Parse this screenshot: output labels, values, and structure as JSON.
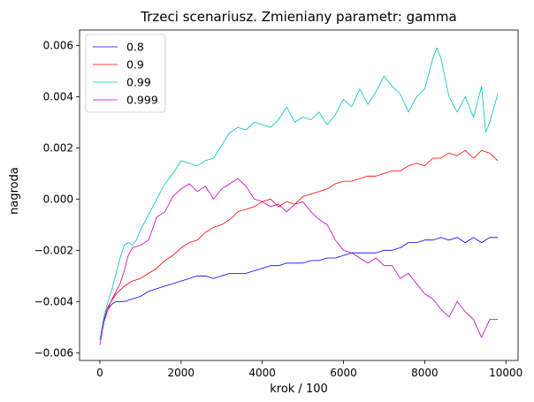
{
  "chart_data": {
    "type": "line",
    "title": "Trzeci scenariusz. Zmieniany parametr: gamma",
    "xlabel": "krok / 100",
    "ylabel": "nagroda",
    "xlim": [
      -500,
      10300
    ],
    "ylim": [
      -0.0063,
      0.0066
    ],
    "xticks": [
      0,
      2000,
      4000,
      6000,
      8000,
      10000
    ],
    "yticks": [
      -0.006,
      -0.004,
      -0.002,
      0.0,
      0.002,
      0.004,
      0.006
    ],
    "ytick_labels": [
      "−0.006",
      "−0.004",
      "−0.002",
      "0.000",
      "0.002",
      "0.004",
      "0.006"
    ],
    "grid": false,
    "legend": "top-left",
    "series": [
      {
        "name": "0.8",
        "color": "#0000ff",
        "x": [
          0,
          100,
          200,
          300,
          400,
          600,
          800,
          1000,
          1200,
          1400,
          1600,
          1800,
          2000,
          2200,
          2400,
          2600,
          2800,
          3000,
          3200,
          3400,
          3600,
          3800,
          4000,
          4200,
          4400,
          4600,
          4800,
          5000,
          5200,
          5400,
          5600,
          5800,
          6000,
          6200,
          6400,
          6600,
          6800,
          7000,
          7200,
          7400,
          7600,
          7800,
          8000,
          8200,
          8400,
          8600,
          8800,
          9000,
          9200,
          9400,
          9600,
          9800
        ],
        "y": [
          -0.0055,
          -0.0047,
          -0.0043,
          -0.0041,
          -0.004,
          -0.004,
          -0.0039,
          -0.0038,
          -0.0036,
          -0.0035,
          -0.0034,
          -0.0033,
          -0.0032,
          -0.0031,
          -0.003,
          -0.003,
          -0.0031,
          -0.003,
          -0.0029,
          -0.0029,
          -0.0029,
          -0.0028,
          -0.0027,
          -0.0026,
          -0.0026,
          -0.0025,
          -0.0025,
          -0.0025,
          -0.0024,
          -0.0024,
          -0.0023,
          -0.0023,
          -0.0022,
          -0.0021,
          -0.0021,
          -0.0021,
          -0.0021,
          -0.002,
          -0.002,
          -0.0019,
          -0.0017,
          -0.0017,
          -0.0016,
          -0.0016,
          -0.0015,
          -0.0016,
          -0.0015,
          -0.0017,
          -0.0015,
          -0.0017,
          -0.0015,
          -0.0015
        ]
      },
      {
        "name": "0.9",
        "color": "#ff0000",
        "x": [
          0,
          100,
          200,
          400,
          600,
          800,
          1000,
          1200,
          1400,
          1600,
          1800,
          2000,
          2200,
          2400,
          2600,
          2800,
          3000,
          3200,
          3400,
          3600,
          3800,
          4000,
          4200,
          4400,
          4600,
          4800,
          5000,
          5200,
          5400,
          5600,
          5800,
          6000,
          6200,
          6400,
          6600,
          6800,
          7000,
          7200,
          7400,
          7600,
          7800,
          8000,
          8200,
          8400,
          8600,
          8800,
          9000,
          9200,
          9400,
          9600,
          9800
        ],
        "y": [
          -0.0055,
          -0.0046,
          -0.0042,
          -0.0037,
          -0.0034,
          -0.0032,
          -0.0031,
          -0.0029,
          -0.0027,
          -0.0024,
          -0.0022,
          -0.0019,
          -0.0017,
          -0.0016,
          -0.0013,
          -0.0011,
          -0.001,
          -0.0008,
          -0.0005,
          -0.0004,
          -0.0003,
          -0.0001,
          0.0,
          -0.0003,
          -0.0001,
          -0.0002,
          0.0001,
          0.0002,
          0.0003,
          0.0004,
          0.0006,
          0.0007,
          0.0007,
          0.0008,
          0.0009,
          0.0009,
          0.001,
          0.0011,
          0.0011,
          0.0013,
          0.0014,
          0.0013,
          0.0016,
          0.0016,
          0.0018,
          0.0017,
          0.0019,
          0.0016,
          0.0019,
          0.0018,
          0.0015
        ]
      },
      {
        "name": "0.99",
        "color": "#00bfbf",
        "x": [
          0,
          100,
          200,
          300,
          400,
          500,
          600,
          700,
          800,
          900,
          1000,
          1200,
          1400,
          1600,
          1800,
          2000,
          2200,
          2400,
          2600,
          2800,
          3000,
          3200,
          3400,
          3600,
          3800,
          4000,
          4200,
          4400,
          4600,
          4800,
          5000,
          5200,
          5400,
          5600,
          5800,
          6000,
          6200,
          6400,
          6600,
          6800,
          7000,
          7200,
          7400,
          7600,
          7800,
          8000,
          8200,
          8300,
          8400,
          8600,
          8800,
          9000,
          9200,
          9400,
          9500,
          9600,
          9800
        ],
        "y": [
          -0.0055,
          -0.0046,
          -0.004,
          -0.0035,
          -0.0029,
          -0.0023,
          -0.0018,
          -0.0017,
          -0.0018,
          -0.0016,
          -0.0012,
          -0.0006,
          0.0,
          0.0006,
          0.001,
          0.0015,
          0.0014,
          0.0013,
          0.0015,
          0.0016,
          0.0021,
          0.0026,
          0.0028,
          0.0027,
          0.003,
          0.0029,
          0.0028,
          0.0031,
          0.0036,
          0.003,
          0.0032,
          0.0031,
          0.0034,
          0.0029,
          0.0033,
          0.0039,
          0.0036,
          0.0043,
          0.0037,
          0.0042,
          0.0048,
          0.0044,
          0.0041,
          0.0034,
          0.004,
          0.0043,
          0.0055,
          0.0059,
          0.0055,
          0.004,
          0.0034,
          0.004,
          0.0032,
          0.0044,
          0.0026,
          0.003,
          0.0041
        ]
      },
      {
        "name": "0.999",
        "color": "#bf00bf",
        "x": [
          0,
          100,
          200,
          300,
          400,
          500,
          600,
          700,
          800,
          1000,
          1200,
          1400,
          1600,
          1800,
          2000,
          2200,
          2400,
          2600,
          2800,
          3000,
          3200,
          3400,
          3600,
          3800,
          4000,
          4200,
          4400,
          4600,
          4800,
          5000,
          5200,
          5400,
          5600,
          5800,
          6000,
          6200,
          6400,
          6600,
          6800,
          7000,
          7200,
          7400,
          7600,
          7800,
          8000,
          8200,
          8400,
          8600,
          8800,
          9000,
          9200,
          9400,
          9600,
          9800
        ],
        "y": [
          -0.0057,
          -0.0048,
          -0.0043,
          -0.0039,
          -0.0036,
          -0.0033,
          -0.0028,
          -0.0022,
          -0.0019,
          -0.0018,
          -0.0016,
          -0.0007,
          -0.0005,
          0.0001,
          0.0004,
          0.0006,
          0.0003,
          0.0005,
          0.0,
          0.0004,
          0.0006,
          0.0008,
          0.0005,
          0.0,
          -0.0001,
          -0.0003,
          -0.0002,
          -0.0005,
          -0.0002,
          -0.0001,
          -0.0005,
          -0.0008,
          -0.001,
          -0.0016,
          -0.002,
          -0.0021,
          -0.0023,
          -0.0025,
          -0.0023,
          -0.0026,
          -0.0026,
          -0.0031,
          -0.0029,
          -0.0033,
          -0.0037,
          -0.0039,
          -0.0043,
          -0.0046,
          -0.004,
          -0.0044,
          -0.0047,
          -0.0054,
          -0.0047,
          -0.0047
        ]
      }
    ]
  }
}
